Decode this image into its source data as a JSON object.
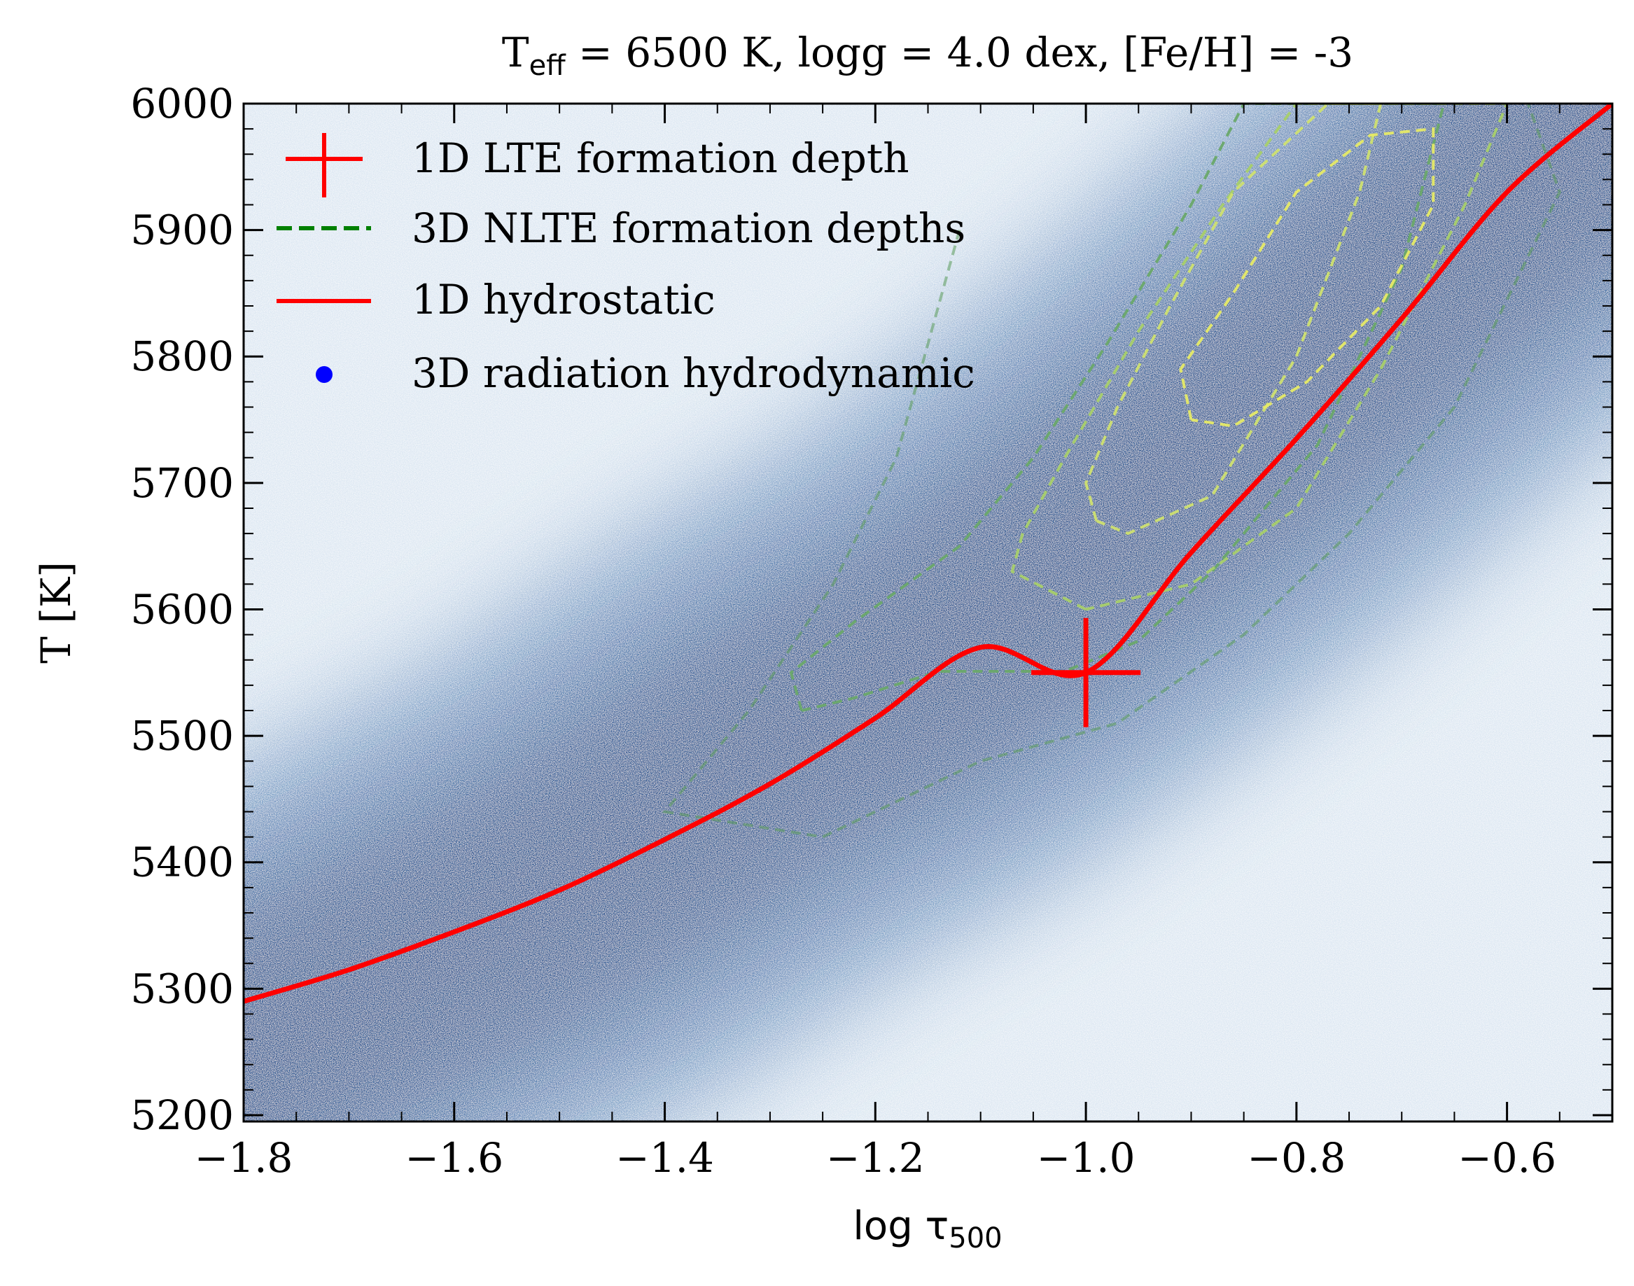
{
  "chart_data": {
    "type": "scatter",
    "title": {
      "prefix": "T",
      "sub": "eff",
      "rest": " = 6500 K, logg = 4.0 dex, [Fe/H] = -3"
    },
    "xlabel": {
      "prefix": "log τ",
      "sub": "500"
    },
    "ylabel": "T [K]",
    "xlim": [
      -1.8,
      -0.5
    ],
    "ylim": [
      5195,
      6000
    ],
    "x_ticks": [
      -1.8,
      -1.6,
      -1.4,
      -1.2,
      -1.0,
      -0.8,
      -0.6
    ],
    "x_tick_labels": [
      "−1.8",
      "−1.6",
      "−1.4",
      "−1.2",
      "−1.0",
      "−0.8",
      "−0.6"
    ],
    "y_ticks": [
      5200,
      5300,
      5400,
      5500,
      5600,
      5700,
      5800,
      5900,
      6000
    ],
    "y_tick_labels": [
      "5200",
      "5300",
      "5400",
      "5500",
      "5600",
      "5700",
      "5800",
      "5900",
      "6000"
    ],
    "legend_placement": "top-left",
    "legend": [
      {
        "label": "1D LTE formation depth",
        "marker": "plus",
        "color": "#ff0000"
      },
      {
        "label": "3D NLTE formation depths",
        "marker": "dashed-line",
        "color": "#008000"
      },
      {
        "label": "1D hydrostatic",
        "marker": "solid-line",
        "color": "#ff0000"
      },
      {
        "label": "3D radiation hydrodynamic",
        "marker": "dot",
        "color": "#0000ff"
      }
    ],
    "series": [
      {
        "name": "1D hydrostatic",
        "kind": "line",
        "color": "#ff0000",
        "points": [
          [
            -1.8,
            5290
          ],
          [
            -1.7,
            5315
          ],
          [
            -1.6,
            5345
          ],
          [
            -1.5,
            5378
          ],
          [
            -1.4,
            5418
          ],
          [
            -1.3,
            5462
          ],
          [
            -1.2,
            5514
          ],
          [
            -1.1,
            5570
          ],
          [
            -1.0,
            5550
          ],
          [
            -0.9,
            5645
          ],
          [
            -0.8,
            5735
          ],
          [
            -0.7,
            5830
          ],
          [
            -0.6,
            5930
          ],
          [
            -0.5,
            6000
          ]
        ]
      },
      {
        "name": "1D LTE formation depth",
        "kind": "marker",
        "marker": "plus",
        "color": "#ff0000",
        "points": [
          [
            -1.0,
            5550
          ]
        ]
      },
      {
        "name": "3D radiation hydrodynamic",
        "kind": "density",
        "color": "#1f4e8c",
        "ridge": [
          [
            -1.8,
            5250
          ],
          [
            -1.5,
            5380
          ],
          [
            -1.3,
            5490
          ],
          [
            -1.15,
            5560
          ],
          [
            -1.0,
            5650
          ],
          [
            -0.85,
            5750
          ],
          [
            -0.7,
            5860
          ],
          [
            -0.5,
            6000
          ]
        ]
      },
      {
        "name": "3D NLTE formation depths",
        "kind": "contours",
        "contours": [
          {
            "color": "#5a9a5a",
            "points": [
              [
                -1.12,
                5900
              ],
              [
                -1.18,
                5720
              ],
              [
                -1.24,
                5620
              ],
              [
                -1.32,
                5520
              ],
              [
                -1.4,
                5440
              ],
              [
                -1.25,
                5420
              ],
              [
                -1.1,
                5480
              ],
              [
                -0.97,
                5510
              ],
              [
                -0.85,
                5580
              ],
              [
                -0.75,
                5660
              ],
              [
                -0.65,
                5760
              ],
              [
                -0.55,
                5930
              ],
              [
                -0.58,
                6000
              ]
            ]
          },
          {
            "color": "#6aa86a",
            "points": [
              [
                -1.27,
                5520
              ],
              [
                -1.28,
                5550
              ],
              [
                -1.22,
                5590
              ],
              [
                -1.12,
                5650
              ],
              [
                -1.05,
                5720
              ],
              [
                -0.98,
                5810
              ],
              [
                -0.9,
                5920
              ],
              [
                -0.85,
                6000
              ],
              [
                -0.66,
                6000
              ],
              [
                -0.7,
                5870
              ],
              [
                -0.78,
                5730
              ],
              [
                -0.88,
                5630
              ],
              [
                -0.95,
                5575
              ],
              [
                -1.02,
                5551
              ],
              [
                -1.14,
                5551
              ],
              [
                -1.22,
                5530
              ],
              [
                -1.27,
                5520
              ]
            ]
          },
          {
            "color": "#a8cf6a",
            "points": [
              [
                -1.0,
                5600
              ],
              [
                -1.07,
                5630
              ],
              [
                -1.06,
                5660
              ],
              [
                -1.02,
                5720
              ],
              [
                -0.95,
                5820
              ],
              [
                -0.87,
                5920
              ],
              [
                -0.8,
                6000
              ],
              [
                -0.6,
                6000
              ],
              [
                -0.64,
                5920
              ],
              [
                -0.72,
                5790
              ],
              [
                -0.8,
                5680
              ],
              [
                -0.9,
                5620
              ],
              [
                -1.0,
                5600
              ]
            ]
          },
          {
            "color": "#cfe070",
            "points": [
              [
                -0.99,
                5670
              ],
              [
                -1.0,
                5700
              ],
              [
                -0.97,
                5760
              ],
              [
                -0.92,
                5840
              ],
              [
                -0.86,
                5930
              ],
              [
                -0.77,
                6000
              ],
              [
                -0.72,
                6000
              ],
              [
                -0.74,
                5930
              ],
              [
                -0.8,
                5800
              ],
              [
                -0.88,
                5690
              ],
              [
                -0.96,
                5660
              ],
              [
                -0.99,
                5670
              ]
            ]
          },
          {
            "color": "#e6ea66",
            "points": [
              [
                -0.9,
                5750
              ],
              [
                -0.91,
                5790
              ],
              [
                -0.86,
                5850
              ],
              [
                -0.8,
                5930
              ],
              [
                -0.73,
                5975
              ],
              [
                -0.67,
                5980
              ],
              [
                -0.67,
                5920
              ],
              [
                -0.72,
                5840
              ],
              [
                -0.79,
                5780
              ],
              [
                -0.86,
                5745
              ],
              [
                -0.9,
                5750
              ]
            ]
          }
        ]
      }
    ]
  }
}
